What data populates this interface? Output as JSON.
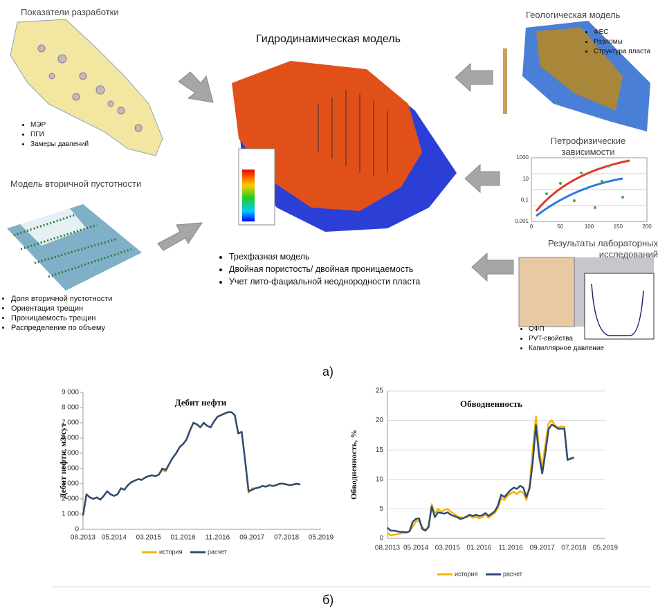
{
  "diagram": {
    "center": {
      "title": "Гидродинамическая модель",
      "bullets": [
        "Трехфазная модель",
        "Двойная пористость/ двойная проницаемость",
        "Учет лито-фациальной неоднородности пласта"
      ]
    },
    "development": {
      "title": "Показатели разработки",
      "bullets": [
        "МЭР",
        "ПГИ",
        "Замеры давлений"
      ]
    },
    "porosity": {
      "title": "Модель вторичной пустотности",
      "bullets": [
        "Доля вторичной пустотности",
        "Ориентация трещин",
        "Проницаемость трещин",
        "Распределение по объему"
      ]
    },
    "geology": {
      "title": "Геологическая модель",
      "bullets": [
        "ФЕС",
        "Разломы",
        "Структура пласта"
      ]
    },
    "petrophysics": {
      "title": "Петрофизические зависимости",
      "yticks": [
        1000,
        10,
        0.1,
        0.001
      ],
      "xticks": [
        0,
        50,
        100,
        150,
        200
      ]
    },
    "laboratory": {
      "title": "Результаты лабораторных исследований",
      "bullets": [
        "ОФП",
        "PVT-свойства",
        "Капиллярное давление"
      ]
    },
    "label": "а)"
  },
  "chart_data": [
    {
      "type": "line",
      "title": "Дебит нефти",
      "y_label": "Дебит нефти, м3/сут",
      "categories": [
        "08.2013",
        null,
        null,
        null,
        null,
        null,
        null,
        null,
        null,
        "05.2014",
        null,
        null,
        null,
        null,
        null,
        null,
        null,
        null,
        null,
        "03.2015",
        null,
        null,
        null,
        null,
        null,
        null,
        null,
        null,
        null,
        "01.2016",
        null,
        null,
        null,
        null,
        null,
        null,
        null,
        null,
        null,
        "11.2016",
        null,
        null,
        null,
        null,
        null,
        null,
        null,
        null,
        null,
        "09.2017",
        null,
        null,
        null,
        null,
        null,
        null,
        null,
        null,
        null,
        "07.2018",
        null,
        null,
        null,
        null,
        null,
        null,
        null,
        null,
        null,
        "05.2019"
      ],
      "ylim": [
        0,
        9000
      ],
      "yticks": [
        0,
        {
          "value": 1000,
          "label": "1 000"
        },
        {
          "value": 2000,
          "label": "2 000"
        },
        {
          "value": 3000,
          "label": "3 000"
        },
        {
          "value": 4000,
          "label": "4 000"
        },
        {
          "value": 5000,
          "label": "5 000"
        },
        {
          "value": 6000,
          "label": "6 000"
        },
        {
          "value": 7000,
          "label": "7 000"
        },
        {
          "value": 8000,
          "label": "8 000"
        },
        {
          "value": 9000,
          "label": "9 000"
        }
      ],
      "grid": false,
      "series": [
        {
          "name": "история",
          "color": "#f5b400",
          "values": [
            1000,
            2300,
            2100,
            2000,
            2100,
            1950,
            2200,
            2500,
            2300,
            2200,
            2300,
            2700,
            2600,
            2900,
            3100,
            3200,
            3300,
            3250,
            3400,
            3500,
            3550,
            3500,
            3600,
            3900,
            3800,
            4300,
            4700,
            5000,
            5400,
            5600,
            5900,
            6500,
            7000,
            6900,
            6700,
            7000,
            6800,
            6700,
            7100,
            7400,
            7500,
            7600,
            7700,
            7700,
            7500,
            6300,
            6400,
            4500,
            2400,
            2700,
            2700,
            2750,
            2850,
            2800,
            2900,
            2850,
            2900,
            3000,
            3000,
            2950,
            2900,
            2950,
            3000,
            2950,
            null,
            null,
            null,
            null,
            null,
            null
          ]
        },
        {
          "name": "расчет",
          "color": "#2e4a78",
          "values": [
            900,
            2300,
            2100,
            2000,
            2100,
            1950,
            2200,
            2500,
            2300,
            2200,
            2300,
            2700,
            2600,
            2900,
            3100,
            3200,
            3300,
            3250,
            3400,
            3500,
            3550,
            3500,
            3600,
            4000,
            3900,
            4300,
            4700,
            5000,
            5400,
            5600,
            5900,
            6500,
            7000,
            6900,
            6700,
            7000,
            6800,
            6700,
            7100,
            7400,
            7500,
            7600,
            7700,
            7700,
            7500,
            6300,
            6400,
            4500,
            2500,
            2600,
            2700,
            2750,
            2850,
            2800,
            2900,
            2850,
            2900,
            3000,
            3000,
            2950,
            2900,
            2950,
            3000,
            2950,
            null,
            null,
            null,
            null,
            null,
            null
          ]
        }
      ]
    },
    {
      "type": "line",
      "title": "Обводненность",
      "y_label": "Обводненность, %",
      "categories": [
        "08.2013",
        null,
        null,
        null,
        null,
        null,
        null,
        null,
        null,
        "05.2014",
        null,
        null,
        null,
        null,
        null,
        null,
        null,
        null,
        null,
        "03.2015",
        null,
        null,
        null,
        null,
        null,
        null,
        null,
        null,
        null,
        "01.2016",
        null,
        null,
        null,
        null,
        null,
        null,
        null,
        null,
        null,
        "11.2016",
        null,
        null,
        null,
        null,
        null,
        null,
        null,
        null,
        null,
        "09.2017",
        null,
        null,
        null,
        null,
        null,
        null,
        null,
        null,
        null,
        "07.2018",
        null,
        null,
        null,
        null,
        null,
        null,
        null,
        null,
        null,
        "05.2019"
      ],
      "ylim": [
        0,
        25
      ],
      "yticks": [
        0,
        5,
        10,
        15,
        20,
        25
      ],
      "grid": true,
      "series": [
        {
          "name": "история",
          "color": "#f5b400",
          "values": [
            0.9,
            0.5,
            0.6,
            0.7,
            0.8,
            0.9,
            1.0,
            1.2,
            2.0,
            2.9,
            3.0,
            1.9,
            1.4,
            2.0,
            5.8,
            4.2,
            5.0,
            4.5,
            4.8,
            5.0,
            4.5,
            4.2,
            3.8,
            3.6,
            3.5,
            3.6,
            3.8,
            3.5,
            3.7,
            3.4,
            3.6,
            4.0,
            3.5,
            3.9,
            4.3,
            5.2,
            6.8,
            6.5,
            7.2,
            7.6,
            7.9,
            7.5,
            8.0,
            7.7,
            6.5,
            9.0,
            15.0,
            20.7,
            15.0,
            12.0,
            16.0,
            19.5,
            20.0,
            19.2,
            18.8,
            19.0,
            18.9,
            13.4,
            13.6,
            13.8,
            null,
            null,
            null,
            null,
            null,
            null,
            null,
            null,
            null,
            null
          ]
        },
        {
          "name": "расчет",
          "color": "#2e4a78",
          "values": [
            1.8,
            1.3,
            1.3,
            1.2,
            1.1,
            1.1,
            1.0,
            1.2,
            2.8,
            3.3,
            3.4,
            1.6,
            1.3,
            1.9,
            5.4,
            3.6,
            4.4,
            4.3,
            4.2,
            4.4,
            4.0,
            3.8,
            3.6,
            3.3,
            3.4,
            3.7,
            4.0,
            3.8,
            4.0,
            3.8,
            3.9,
            4.3,
            3.8,
            4.2,
            4.6,
            5.6,
            7.4,
            7.0,
            7.6,
            8.2,
            8.6,
            8.4,
            8.9,
            8.6,
            7.0,
            8.5,
            13.0,
            19.2,
            14.0,
            11.0,
            14.5,
            18.5,
            19.3,
            19.0,
            18.6,
            18.6,
            18.6,
            13.3,
            13.5,
            13.7,
            null,
            null,
            null,
            null,
            null,
            null,
            null,
            null,
            null,
            null
          ]
        }
      ]
    }
  ],
  "caption": "б)"
}
